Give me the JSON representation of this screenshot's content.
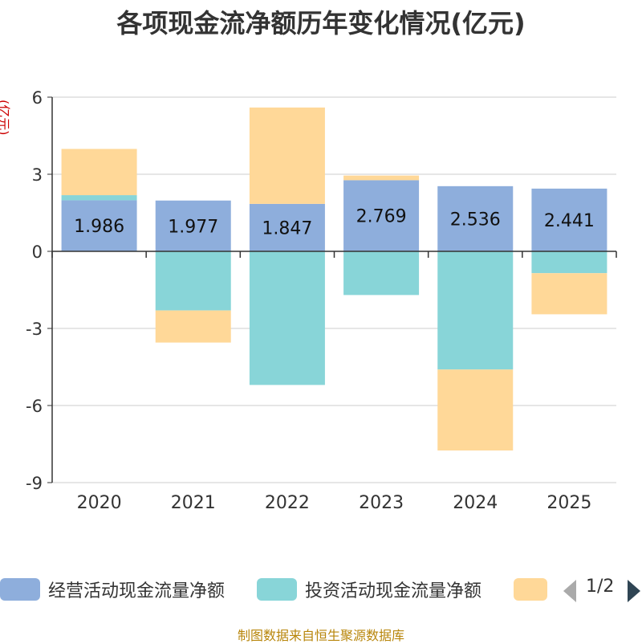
{
  "chart_data": {
    "type": "bar",
    "title": "各项现金流净额历年变化情况(亿元)",
    "ylabel": "(亿元)",
    "ylim": [
      -9,
      6
    ],
    "yticks": [
      6,
      3,
      0,
      -3,
      -6,
      -9
    ],
    "categories": [
      "2020",
      "2021",
      "2022",
      "2023",
      "2024",
      "2025"
    ],
    "series": [
      {
        "name": "经营活动现金流量净额",
        "color": "#8eaedc",
        "values": [
          1.986,
          1.977,
          1.847,
          2.769,
          2.536,
          2.441
        ],
        "labels": [
          "1.986",
          "1.977",
          "1.847",
          "2.769",
          "2.536",
          "2.441"
        ]
      },
      {
        "name": "投资活动现金流量净额",
        "color": "#88d5d8",
        "values": [
          0.2,
          -2.3,
          -5.2,
          -1.7,
          -4.6,
          -0.85
        ]
      },
      {
        "name": "",
        "color": "#ffd898",
        "values": [
          1.8,
          -1.25,
          3.75,
          0.18,
          -3.15,
          -1.6
        ]
      }
    ],
    "legend": {
      "page": "1/2"
    }
  },
  "footer": "制图数据来自恒生聚源数据库"
}
